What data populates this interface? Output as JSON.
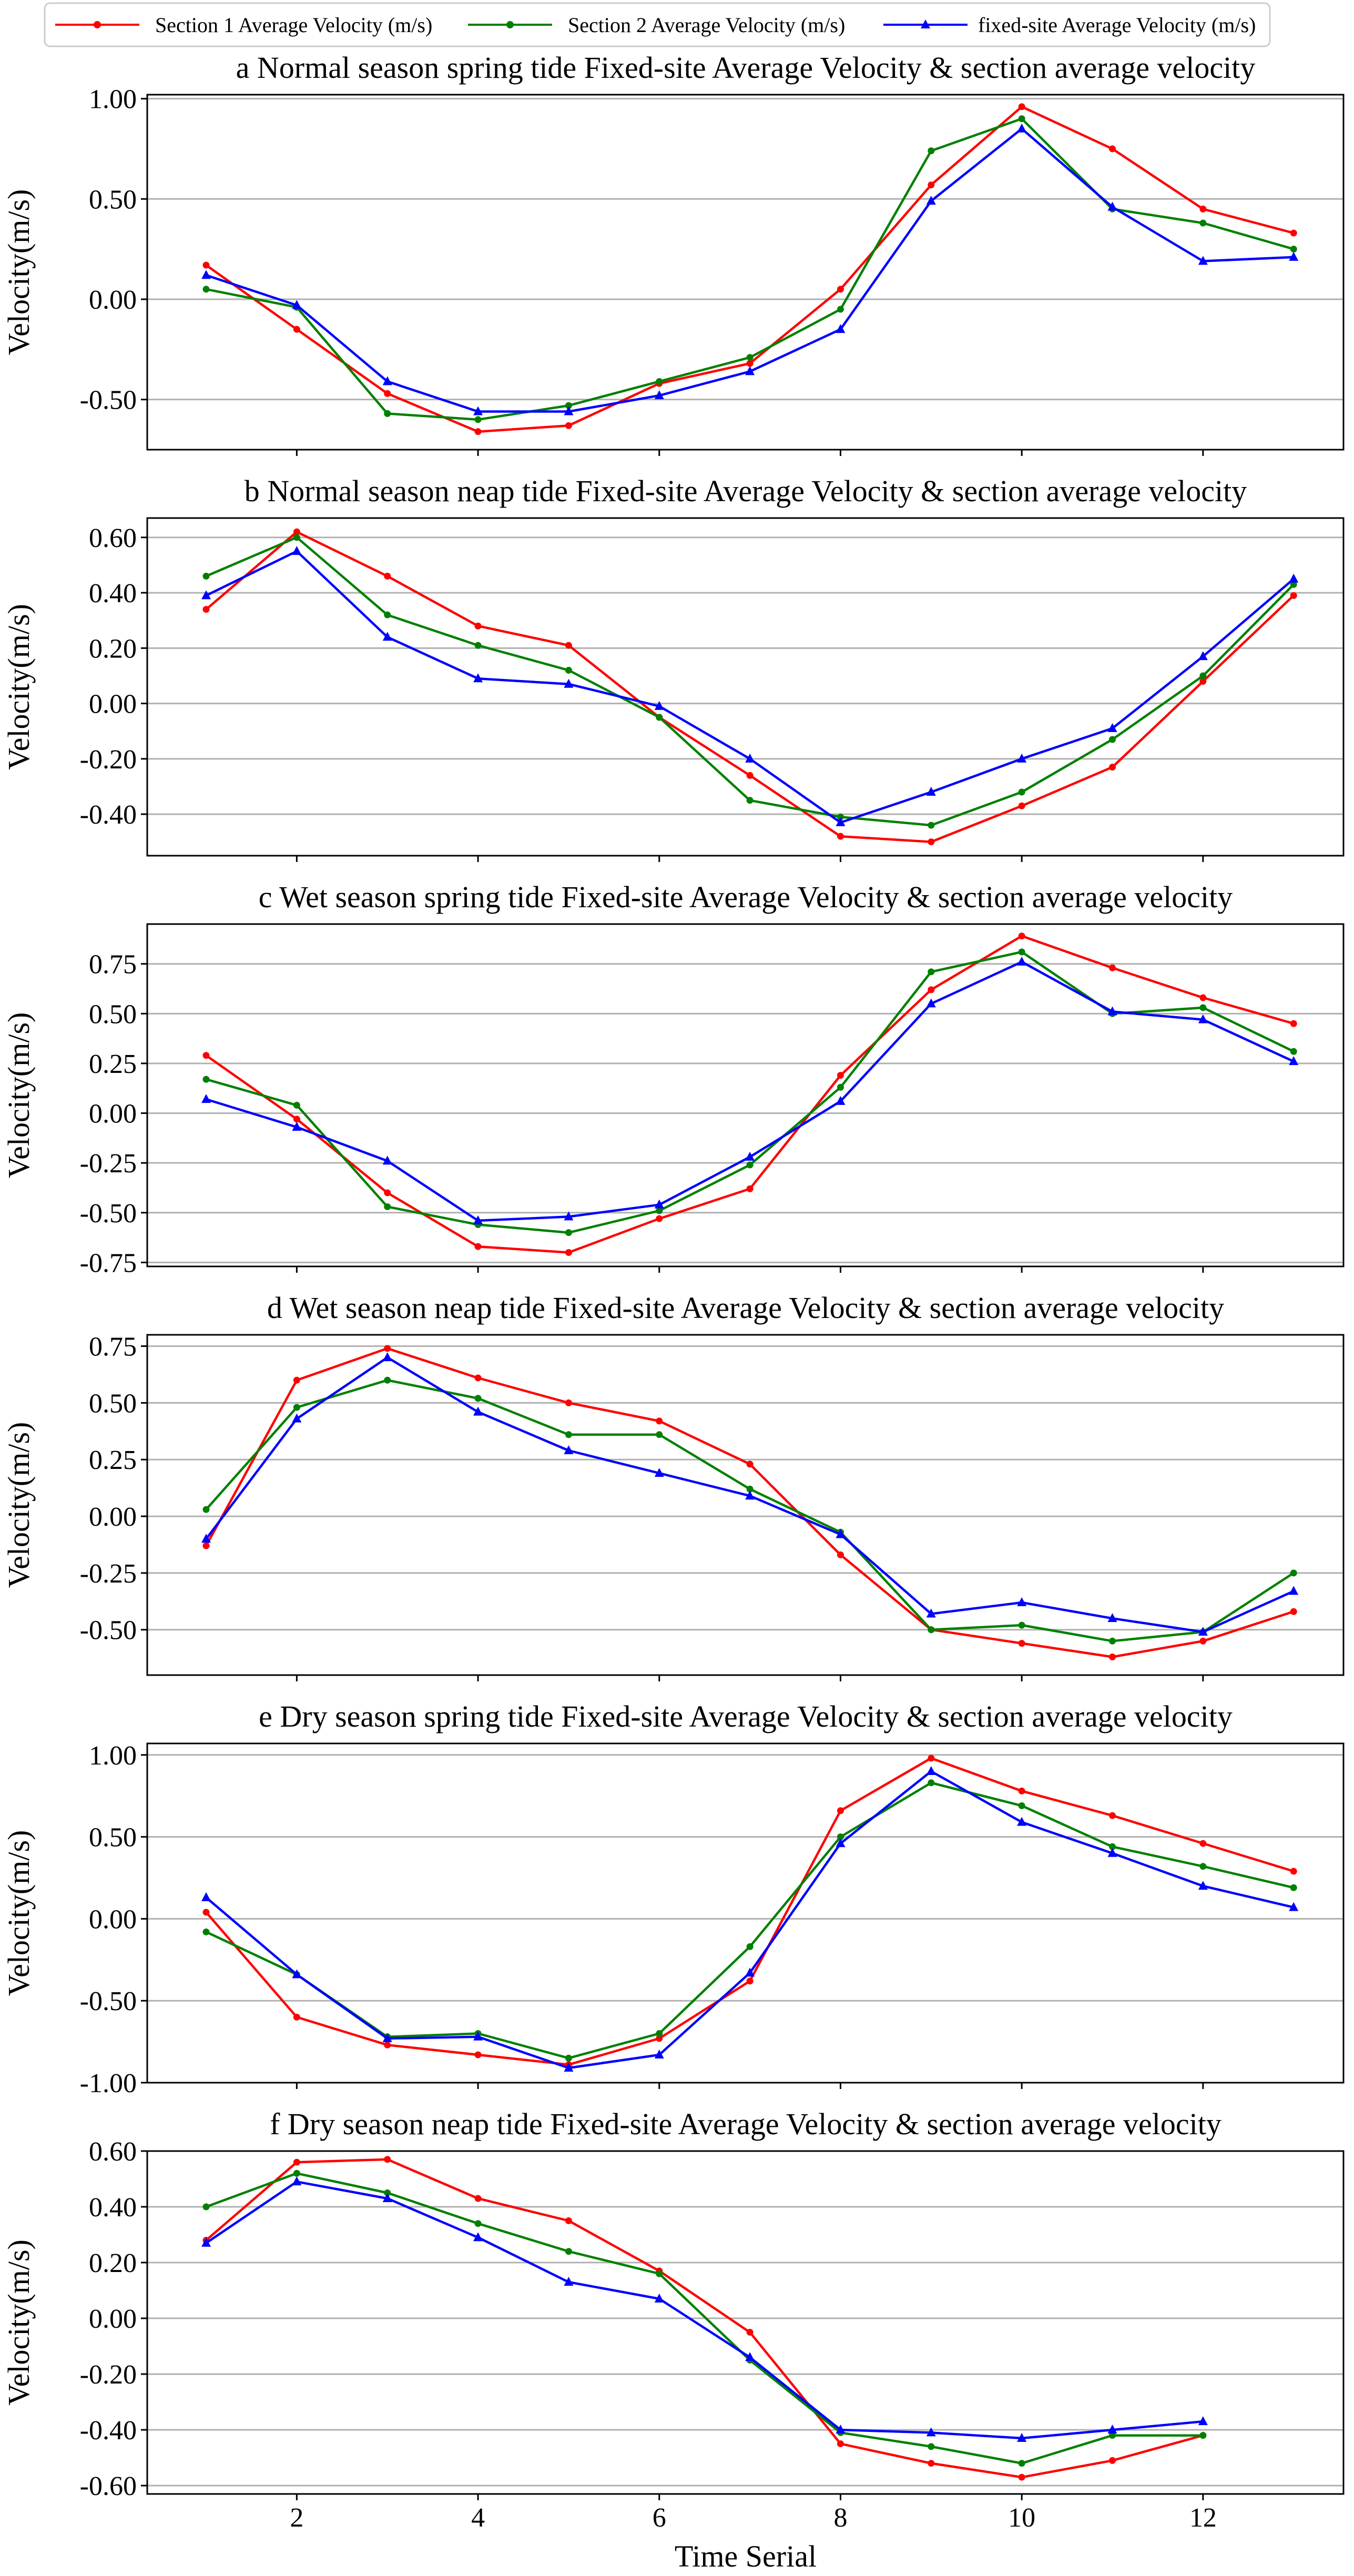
{
  "legend": [
    {
      "name": "Section 1 Average Velocity (m/s)",
      "color": "#ff0000",
      "marker": "dot"
    },
    {
      "name": "Section 2 Average Velocity (m/s)",
      "color": "#008000",
      "marker": "dot"
    },
    {
      "name": "fixed-site Average Velocity (m/s)",
      "color": "#0000ff",
      "marker": "triangle"
    }
  ],
  "x_axis": {
    "label": "Time Serial",
    "ticks": [
      2,
      4,
      6,
      8,
      10,
      12
    ],
    "range": [
      0.35,
      13.55
    ]
  },
  "chart_data": [
    {
      "type": "line",
      "panel": "a",
      "title": "Normal season spring tide Fixed-site Average Velocity & section average velocity",
      "ylabel": "Velocity(m/s)",
      "ylim": [
        -0.75,
        1.02
      ],
      "yticks": [
        "1.00",
        "0.50",
        "0.00",
        "-0.50"
      ],
      "ytick_values": [
        1.0,
        0.5,
        0.0,
        -0.5
      ],
      "x": [
        1,
        2,
        3,
        4,
        5,
        6,
        7,
        8,
        9,
        10,
        11,
        12,
        13
      ],
      "series": [
        {
          "name": "Section 1 Average Velocity (m/s)",
          "values": [
            0.17,
            -0.15,
            -0.47,
            -0.66,
            -0.63,
            -0.42,
            -0.32,
            0.05,
            0.57,
            0.96,
            0.75,
            0.45,
            0.33
          ]
        },
        {
          "name": "Section 2 Average Velocity (m/s)",
          "values": [
            0.05,
            -0.04,
            -0.57,
            -0.6,
            -0.53,
            -0.41,
            -0.29,
            -0.05,
            0.74,
            0.9,
            0.45,
            0.38,
            0.25
          ]
        },
        {
          "name": "fixed-site Average Velocity (m/s)",
          "values": [
            0.12,
            -0.03,
            -0.41,
            -0.56,
            -0.56,
            -0.48,
            -0.36,
            -0.15,
            0.49,
            0.85,
            0.46,
            0.19,
            0.21
          ]
        }
      ]
    },
    {
      "type": "line",
      "panel": "b",
      "title": "Normal season neap tide Fixed-site Average Velocity  & section average velocity",
      "ylabel": "Velocity(m/s)",
      "ylim": [
        -0.55,
        0.67
      ],
      "yticks": [
        "0.60",
        "0.40",
        "0.20",
        "0.00",
        "-0.20",
        "-0.40"
      ],
      "ytick_values": [
        0.6,
        0.4,
        0.2,
        0.0,
        -0.2,
        -0.4
      ],
      "x": [
        1,
        2,
        3,
        4,
        5,
        6,
        7,
        8,
        9,
        10,
        11,
        12,
        13
      ],
      "series": [
        {
          "name": "Section 1 Average Velocity (m/s)",
          "values": [
            0.34,
            0.62,
            0.46,
            0.28,
            0.21,
            -0.05,
            -0.26,
            -0.48,
            -0.5,
            -0.37,
            -0.23,
            0.08,
            0.39
          ]
        },
        {
          "name": "Section 2 Average Velocity (m/s)",
          "values": [
            0.46,
            0.6,
            0.32,
            0.21,
            0.12,
            -0.05,
            -0.35,
            -0.41,
            -0.44,
            -0.32,
            -0.13,
            0.1,
            0.43
          ]
        },
        {
          "name": "fixed-site Average Velocity (m/s)",
          "values": [
            0.39,
            0.55,
            0.24,
            0.09,
            0.07,
            -0.01,
            -0.2,
            -0.43,
            -0.32,
            -0.2,
            -0.09,
            0.17,
            0.45
          ]
        }
      ]
    },
    {
      "type": "line",
      "panel": "c",
      "title": "Wet season spring tide Fixed-site Average Velocity  & section average velocity",
      "ylabel": "Velocity(m/s)",
      "ylim": [
        -0.77,
        0.95
      ],
      "yticks": [
        "0.75",
        "0.50",
        "0.25",
        "0.00",
        "-0.25",
        "-0.50",
        "-0.75"
      ],
      "ytick_values": [
        0.75,
        0.5,
        0.25,
        0.0,
        -0.25,
        -0.5,
        -0.75
      ],
      "x": [
        1,
        2,
        3,
        4,
        5,
        6,
        7,
        8,
        9,
        10,
        11,
        12,
        13
      ],
      "series": [
        {
          "name": "Section 1 Average Velocity (m/s)",
          "values": [
            0.29,
            -0.03,
            -0.4,
            -0.67,
            -0.7,
            -0.53,
            -0.38,
            0.19,
            0.62,
            0.89,
            0.73,
            0.58,
            0.45
          ]
        },
        {
          "name": "Section 2 Average Velocity (m/s)",
          "values": [
            0.17,
            0.04,
            -0.47,
            -0.56,
            -0.6,
            -0.49,
            -0.26,
            0.13,
            0.71,
            0.81,
            0.5,
            0.53,
            0.31
          ]
        },
        {
          "name": "fixed-site Average Velocity (m/s)",
          "values": [
            0.07,
            -0.07,
            -0.24,
            -0.54,
            -0.52,
            -0.46,
            -0.22,
            0.06,
            0.55,
            0.76,
            0.51,
            0.47,
            0.26
          ]
        }
      ]
    },
    {
      "type": "line",
      "panel": "d",
      "title": "Wet season neap tide Fixed-site Average Velocity  & section average velocity",
      "ylabel": "Velocity(m/s)",
      "ylim": [
        -0.7,
        0.8
      ],
      "yticks": [
        "0.75",
        "0.50",
        "0.25",
        "0.00",
        "-0.25",
        "-0.50"
      ],
      "ytick_values": [
        0.75,
        0.5,
        0.25,
        0.0,
        -0.25,
        -0.5
      ],
      "x": [
        1,
        2,
        3,
        4,
        5,
        6,
        7,
        8,
        9,
        10,
        11,
        12,
        13
      ],
      "series": [
        {
          "name": "Section 1 Average Velocity (m/s)",
          "values": [
            -0.13,
            0.6,
            0.74,
            0.61,
            0.5,
            0.42,
            0.23,
            -0.17,
            -0.5,
            -0.56,
            -0.62,
            -0.55,
            -0.42
          ]
        },
        {
          "name": "Section 2 Average Velocity (m/s)",
          "values": [
            0.03,
            0.48,
            0.6,
            0.52,
            0.36,
            0.36,
            0.12,
            -0.07,
            -0.5,
            -0.48,
            -0.55,
            -0.51,
            -0.25
          ]
        },
        {
          "name": "fixed-site Average Velocity (m/s)",
          "values": [
            -0.1,
            0.43,
            0.7,
            0.46,
            0.29,
            0.19,
            0.09,
            -0.08,
            -0.43,
            -0.38,
            -0.45,
            -0.51,
            -0.33
          ]
        }
      ]
    },
    {
      "type": "line",
      "panel": "e",
      "title": "Dry season spring tide Fixed-site Average Velocity  & section average velocity",
      "ylabel": "Velocity(m/s)",
      "ylim": [
        -1.0,
        1.07
      ],
      "yticks": [
        "1.00",
        "0.50",
        "0.00",
        "-0.50",
        "-1.00"
      ],
      "ytick_values": [
        1.0,
        0.5,
        0.0,
        -0.5,
        -1.0
      ],
      "x": [
        1,
        2,
        3,
        4,
        5,
        6,
        7,
        8,
        9,
        10,
        11,
        12,
        13
      ],
      "series": [
        {
          "name": "Section 1 Average Velocity (m/s)",
          "values": [
            0.04,
            -0.6,
            -0.77,
            -0.83,
            -0.89,
            -0.73,
            -0.38,
            0.66,
            0.98,
            0.78,
            0.63,
            0.46,
            0.29
          ]
        },
        {
          "name": "Section 2 Average Velocity (m/s)",
          "values": [
            -0.08,
            -0.34,
            -0.72,
            -0.7,
            -0.85,
            -0.7,
            -0.17,
            0.5,
            0.83,
            0.69,
            0.44,
            0.32,
            0.19
          ]
        },
        {
          "name": "fixed-site Average Velocity (m/s)",
          "values": [
            0.13,
            -0.34,
            -0.73,
            -0.72,
            -0.91,
            -0.83,
            -0.33,
            0.46,
            0.9,
            0.59,
            0.4,
            0.2,
            0.07
          ]
        }
      ]
    },
    {
      "type": "line",
      "panel": "f",
      "title": "Dry season neap tide Fixed-site Average Velocity  & section average velocity",
      "ylabel": "Velocity(m/s)",
      "ylim": [
        -0.63,
        0.6
      ],
      "yticks": [
        "0.60",
        "0.40",
        "0.20",
        "0.00",
        "-0.20",
        "-0.40",
        "-0.60"
      ],
      "ytick_values": [
        0.6,
        0.4,
        0.2,
        0.0,
        -0.2,
        -0.4,
        -0.6
      ],
      "x": [
        1,
        2,
        3,
        4,
        5,
        6,
        7,
        8,
        9,
        10,
        11,
        12
      ],
      "series": [
        {
          "name": "Section 1 Average Velocity (m/s)",
          "values": [
            0.28,
            0.56,
            0.57,
            0.43,
            0.35,
            0.17,
            -0.05,
            -0.45,
            -0.52,
            -0.57,
            -0.51,
            -0.42
          ]
        },
        {
          "name": "Section 2 Average Velocity (m/s)",
          "values": [
            0.4,
            0.52,
            0.45,
            0.34,
            0.24,
            0.16,
            -0.15,
            -0.41,
            -0.46,
            -0.52,
            -0.42,
            -0.42
          ]
        },
        {
          "name": "fixed-site Average Velocity (m/s)",
          "values": [
            0.27,
            0.49,
            0.43,
            0.29,
            0.13,
            0.07,
            -0.14,
            -0.4,
            -0.41,
            -0.43,
            -0.4,
            -0.37
          ]
        }
      ]
    }
  ]
}
